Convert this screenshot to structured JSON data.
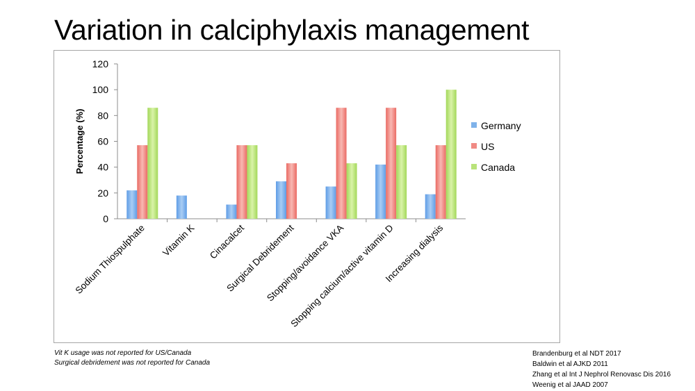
{
  "slide": {
    "title": "Variation in calciphylaxis management",
    "footnotes": [
      "Vit K usage was not reported for US/Canada",
      "Surgical debridement was not reported for Canada"
    ],
    "references": [
      "Brandenburg et al NDT 2017",
      "Baldwin et al AJKD 2011",
      "Zhang et al Int J Nephrol Renovasc Dis 2016",
      "Weenig et al JAAD 2007"
    ]
  },
  "chart_data": {
    "type": "bar",
    "title": "",
    "xlabel": "",
    "ylabel": "Percentage (%)",
    "ylim": [
      0,
      120
    ],
    "yticks": [
      0,
      20,
      40,
      60,
      80,
      100,
      120
    ],
    "grid": false,
    "legend_position": "right",
    "categories": [
      "Sodium Thiospulphate",
      "Vitamin K",
      "Cinacalcet",
      "Surgical Debridement",
      "Stopping/avoidance VKA",
      "Stopping calcium/active vitamin D",
      "Increasing dialysis"
    ],
    "series": [
      {
        "name": "Germany",
        "color": "#7fb2ea",
        "values": [
          22,
          18,
          11,
          29,
          25,
          42,
          19
        ]
      },
      {
        "name": "US",
        "color": "#f08a84",
        "values": [
          57,
          null,
          57,
          43,
          86,
          86,
          57
        ]
      },
      {
        "name": "Canada",
        "color": "#b9e37a",
        "values": [
          86,
          null,
          57,
          null,
          43,
          57,
          100
        ]
      }
    ]
  }
}
